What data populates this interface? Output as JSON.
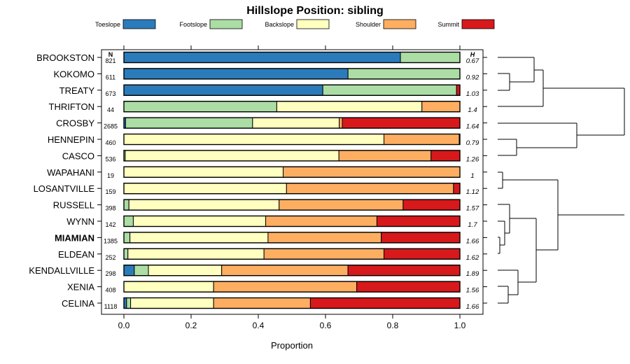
{
  "chart_data": {
    "type": "bar",
    "stacked": "proportion",
    "title": "Hillslope Position: sibling",
    "xlabel": "Proportion",
    "xlim": [
      0,
      1
    ],
    "xticks": [
      "0.0",
      "0.2",
      "0.4",
      "0.6",
      "0.8",
      "1.0"
    ],
    "n_header": "N",
    "h_header": "H",
    "highlight": "MIAMIAN",
    "classes": [
      "Toeslope",
      "Footslope",
      "Backslope",
      "Shoulder",
      "Summit"
    ],
    "colors": [
      "#2b7bba",
      "#abdda4",
      "#ffffbf",
      "#fdae61",
      "#d7191c"
    ],
    "rows": [
      {
        "name": "BROOKSTON",
        "n": "821",
        "h": "0.67",
        "values": [
          0.823,
          0.177,
          0,
          0,
          0
        ]
      },
      {
        "name": "KOKOMO",
        "n": "611",
        "h": "0.92",
        "values": [
          0.667,
          0.333,
          0,
          0,
          0
        ]
      },
      {
        "name": "TREATY",
        "n": "673",
        "h": "1.03",
        "values": [
          0.592,
          0.398,
          0,
          0,
          0.01
        ]
      },
      {
        "name": "THRIFTON",
        "n": "44",
        "h": "1.4",
        "values": [
          0,
          0.455,
          0.432,
          0.113,
          0
        ]
      },
      {
        "name": "CROSBY",
        "n": "2685",
        "h": "1.64",
        "values": [
          0.005,
          0.378,
          0.258,
          0.009,
          0.35
        ]
      },
      {
        "name": "HENNEPIN",
        "n": "460",
        "h": "0.79",
        "values": [
          0,
          0,
          0.774,
          0.224,
          0.002
        ]
      },
      {
        "name": "CASCO",
        "n": "536",
        "h": "1.26",
        "values": [
          0,
          0.004,
          0.636,
          0.274,
          0.086
        ]
      },
      {
        "name": "WAPAHANI",
        "n": "19",
        "h": "1",
        "values": [
          0,
          0,
          0.474,
          0.526,
          0
        ]
      },
      {
        "name": "LOSANTVILLE",
        "n": "159",
        "h": "1.12",
        "values": [
          0,
          0,
          0.484,
          0.497,
          0.019
        ]
      },
      {
        "name": "RUSSELL",
        "n": "398",
        "h": "1.57",
        "values": [
          0,
          0.015,
          0.447,
          0.369,
          0.169
        ]
      },
      {
        "name": "WYNN",
        "n": "142",
        "h": "1.7",
        "values": [
          0,
          0.028,
          0.394,
          0.331,
          0.247
        ]
      },
      {
        "name": "MIAMIAN",
        "n": "1385",
        "h": "1.66",
        "values": [
          0,
          0.018,
          0.411,
          0.337,
          0.234
        ]
      },
      {
        "name": "ELDEAN",
        "n": "252",
        "h": "1.62",
        "values": [
          0,
          0.012,
          0.405,
          0.357,
          0.226
        ]
      },
      {
        "name": "KENDALLVILLE",
        "n": "298",
        "h": "1.89",
        "values": [
          0.031,
          0.042,
          0.218,
          0.376,
          0.333
        ]
      },
      {
        "name": "XENIA",
        "n": "408",
        "h": "1.56",
        "values": [
          0,
          0,
          0.267,
          0.426,
          0.307
        ]
      },
      {
        "name": "CELINA",
        "n": "1118",
        "h": "1.66",
        "values": [
          0.008,
          0.012,
          0.247,
          0.288,
          0.445
        ]
      }
    ]
  }
}
